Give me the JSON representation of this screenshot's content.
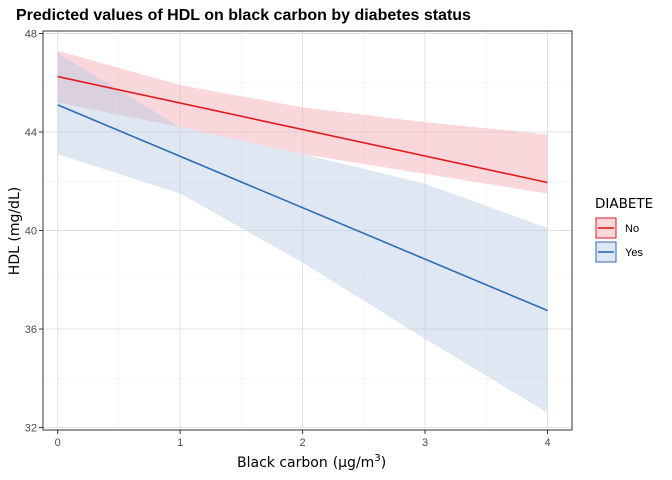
{
  "chart_data": {
    "type": "line",
    "title": "Predicted values of HDL on black carbon by diabetes status",
    "xlabel": "Black carbon",
    "xlabel_unit": "(μg/m",
    "xlabel_unit_exp": "3",
    "xlabel_unit_close": ")",
    "ylabel": "HDL (mg/dL)",
    "xlim": [
      -0.12,
      4.2
    ],
    "ylim": [
      31.9,
      48.1
    ],
    "x_ticks": [
      0,
      1,
      2,
      3,
      4
    ],
    "y_ticks": [
      32,
      36,
      40,
      44,
      48
    ],
    "grid": true,
    "legend": {
      "title": "DIABETE",
      "position": "right"
    },
    "series": [
      {
        "name": "No",
        "color": "#e41a1c",
        "band_color": "#f4a6ad",
        "x": [
          0,
          4
        ],
        "y": [
          46.25,
          41.95
        ],
        "ci_x": [
          0,
          1,
          2,
          3,
          4
        ],
        "ci_low": [
          45.2,
          44.2,
          43.1,
          42.3,
          41.5
        ],
        "ci_high": [
          47.3,
          45.9,
          45.0,
          44.4,
          43.9
        ]
      },
      {
        "name": "Yes",
        "color": "#2b6cb6",
        "band_color": "#b6c9e2",
        "x": [
          0,
          4
        ],
        "y": [
          45.1,
          36.75
        ],
        "ci_x": [
          0,
          1,
          2,
          3,
          4
        ],
        "ci_low": [
          43.1,
          41.5,
          38.7,
          35.6,
          32.6
        ],
        "ci_high": [
          47.2,
          44.2,
          43.1,
          41.9,
          40.1
        ]
      }
    ]
  }
}
